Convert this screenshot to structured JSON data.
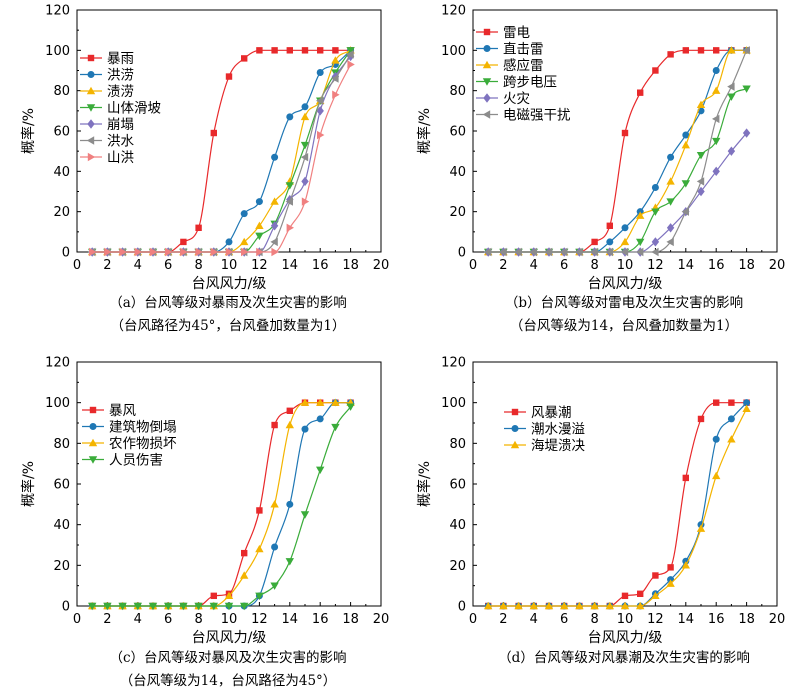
{
  "chart_data": [
    {
      "type": "line",
      "xlabel": "台风风力/级",
      "ylabel": "概率/%",
      "xlim": [
        0,
        20
      ],
      "ylim": [
        0,
        120
      ],
      "xticks": [
        0,
        2,
        4,
        6,
        8,
        10,
        12,
        14,
        16,
        18,
        20
      ],
      "yticks": [
        0,
        20,
        40,
        60,
        80,
        100,
        120
      ],
      "grid": false,
      "legend_position": "top-left",
      "caption_line1": "（a）台风等级对暴雨及次生灾害的影响",
      "caption_line2": "（台风路径为45°，台风叠加数量为1）",
      "x": [
        1,
        2,
        3,
        4,
        5,
        6,
        7,
        8,
        9,
        10,
        11,
        12,
        13,
        14,
        15,
        16,
        17,
        18
      ],
      "series": [
        {
          "name": "暴雨",
          "color": "#e8292b",
          "marker": "square",
          "values": [
            0,
            0,
            0,
            0,
            0,
            0,
            5,
            12,
            59,
            87,
            96,
            100,
            100,
            100,
            100,
            100,
            100,
            100
          ]
        },
        {
          "name": "洪涝",
          "color": "#1f77b4",
          "marker": "circle",
          "values": [
            0,
            0,
            0,
            0,
            0,
            0,
            0,
            0,
            0,
            5,
            19,
            25,
            47,
            67,
            72,
            89,
            93,
            100
          ]
        },
        {
          "name": "渍涝",
          "color": "#f4b400",
          "marker": "triangle-up",
          "values": [
            0,
            0,
            0,
            0,
            0,
            0,
            0,
            0,
            0,
            0,
            5,
            13,
            25,
            35,
            67,
            75,
            95,
            100
          ]
        },
        {
          "name": "山体滑坡",
          "color": "#3aac3a",
          "marker": "triangle-down",
          "values": [
            0,
            0,
            0,
            0,
            0,
            0,
            0,
            0,
            0,
            0,
            0,
            8,
            14,
            33,
            53,
            75,
            89,
            100
          ]
        },
        {
          "name": "崩塌",
          "color": "#7f73bf",
          "marker": "diamond",
          "values": [
            0,
            0,
            0,
            0,
            0,
            0,
            0,
            0,
            0,
            0,
            0,
            0,
            13,
            26,
            35,
            70,
            87,
            97
          ]
        },
        {
          "name": "洪水",
          "color": "#8c8c8c",
          "marker": "triangle-left",
          "values": [
            0,
            0,
            0,
            0,
            0,
            0,
            0,
            0,
            0,
            0,
            0,
            0,
            5,
            25,
            47,
            75,
            86,
            98
          ]
        },
        {
          "name": "山洪",
          "color": "#f08080",
          "marker": "triangle-right",
          "values": [
            0,
            0,
            0,
            0,
            0,
            0,
            0,
            0,
            0,
            0,
            0,
            0,
            0,
            12,
            25,
            58,
            78,
            93
          ]
        }
      ]
    },
    {
      "type": "line",
      "xlabel": "台风风力/级",
      "ylabel": "概率/%",
      "xlim": [
        0,
        20
      ],
      "ylim": [
        0,
        120
      ],
      "xticks": [
        0,
        2,
        4,
        6,
        8,
        10,
        12,
        14,
        16,
        18,
        20
      ],
      "yticks": [
        0,
        20,
        40,
        60,
        80,
        100,
        120
      ],
      "grid": false,
      "legend_position": "top-left",
      "caption_line1": "（b）台风等级对雷电及次生灾害的影响",
      "caption_line2": "（台风等级为14，台风叠加数量为1）",
      "x": [
        1,
        2,
        3,
        4,
        5,
        6,
        7,
        8,
        9,
        10,
        11,
        12,
        13,
        14,
        15,
        16,
        17,
        18
      ],
      "series": [
        {
          "name": "雷电",
          "color": "#e8292b",
          "marker": "square",
          "values": [
            0,
            0,
            0,
            0,
            0,
            0,
            0,
            5,
            13,
            59,
            79,
            90,
            98,
            100,
            100,
            100,
            100,
            100
          ]
        },
        {
          "name": "直击雷",
          "color": "#1f77b4",
          "marker": "circle",
          "values": [
            0,
            0,
            0,
            0,
            0,
            0,
            0,
            0,
            5,
            12,
            20,
            32,
            47,
            58,
            70,
            90,
            100,
            100
          ]
        },
        {
          "name": "感应雷",
          "color": "#f4b400",
          "marker": "triangle-up",
          "values": [
            0,
            0,
            0,
            0,
            0,
            0,
            0,
            0,
            0,
            5,
            18,
            22,
            35,
            53,
            73,
            80,
            100,
            100
          ]
        },
        {
          "name": "跨步电压",
          "color": "#3aac3a",
          "marker": "triangle-down",
          "values": [
            0,
            0,
            0,
            0,
            0,
            0,
            0,
            0,
            0,
            0,
            5,
            20,
            25,
            34,
            48,
            55,
            77,
            81
          ]
        },
        {
          "name": "火灾",
          "color": "#7f73bf",
          "marker": "diamond",
          "values": [
            0,
            0,
            0,
            0,
            0,
            0,
            0,
            0,
            0,
            0,
            0,
            5,
            12,
            20,
            30,
            40,
            50,
            59
          ]
        },
        {
          "name": "电磁强干扰",
          "color": "#8c8c8c",
          "marker": "triangle-left",
          "values": [
            0,
            0,
            0,
            0,
            0,
            0,
            0,
            0,
            0,
            0,
            0,
            0,
            5,
            20,
            35,
            66,
            82,
            100
          ]
        }
      ]
    },
    {
      "type": "line",
      "xlabel": "台风风力/级",
      "ylabel": "概率/%",
      "xlim": [
        0,
        20
      ],
      "ylim": [
        0,
        120
      ],
      "xticks": [
        0,
        2,
        4,
        6,
        8,
        10,
        12,
        14,
        16,
        18,
        20
      ],
      "yticks": [
        0,
        20,
        40,
        60,
        80,
        100,
        120
      ],
      "grid": false,
      "legend_position": "top-left",
      "caption_line1": "（c）台风等级对暴风及次生灾害的影响",
      "caption_line2": "（台风等级为14，台风路径为45°）",
      "x": [
        1,
        2,
        3,
        4,
        5,
        6,
        7,
        8,
        9,
        10,
        11,
        12,
        13,
        14,
        15,
        16,
        17,
        18
      ],
      "series": [
        {
          "name": "暴风",
          "color": "#e8292b",
          "marker": "square",
          "values": [
            0,
            0,
            0,
            0,
            0,
            0,
            0,
            0,
            5,
            6,
            26,
            47,
            89,
            96,
            100,
            100,
            100,
            100
          ]
        },
        {
          "name": "建筑物倒塌",
          "color": "#1f77b4",
          "marker": "circle",
          "values": [
            0,
            0,
            0,
            0,
            0,
            0,
            0,
            0,
            0,
            0,
            0,
            5,
            29,
            50,
            87,
            92,
            100,
            100
          ]
        },
        {
          "name": "农作物损坏",
          "color": "#f4b400",
          "marker": "triangle-up",
          "values": [
            0,
            0,
            0,
            0,
            0,
            0,
            0,
            0,
            0,
            5,
            15,
            28,
            50,
            89,
            100,
            100,
            100,
            100
          ]
        },
        {
          "name": "人员伤害",
          "color": "#3aac3a",
          "marker": "triangle-down",
          "values": [
            0,
            0,
            0,
            0,
            0,
            0,
            0,
            0,
            0,
            0,
            0,
            5,
            10,
            22,
            45,
            67,
            88,
            98
          ]
        }
      ]
    },
    {
      "type": "line",
      "xlabel": "台风风力/级",
      "ylabel": "概率/%",
      "xlim": [
        0,
        20
      ],
      "ylim": [
        0,
        120
      ],
      "xticks": [
        0,
        2,
        4,
        6,
        8,
        10,
        12,
        14,
        16,
        18,
        20
      ],
      "yticks": [
        0,
        20,
        40,
        60,
        80,
        100,
        120
      ],
      "grid": false,
      "legend_position": "top-left",
      "caption_line1": "（d）台风等级对风暴潮及次生灾害的影响",
      "caption_line2": "",
      "x": [
        1,
        2,
        3,
        4,
        5,
        6,
        7,
        8,
        9,
        10,
        11,
        12,
        13,
        14,
        15,
        16,
        17,
        18
      ],
      "series": [
        {
          "name": "风暴潮",
          "color": "#e8292b",
          "marker": "square",
          "values": [
            0,
            0,
            0,
            0,
            0,
            0,
            0,
            0,
            0,
            5,
            6,
            15,
            19,
            63,
            92,
            100,
            100,
            100
          ]
        },
        {
          "name": "潮水漫溢",
          "color": "#1f77b4",
          "marker": "circle",
          "values": [
            0,
            0,
            0,
            0,
            0,
            0,
            0,
            0,
            0,
            0,
            0,
            6,
            13,
            22,
            40,
            82,
            92,
            100
          ]
        },
        {
          "name": "海堤溃决",
          "color": "#f4b400",
          "marker": "triangle-up",
          "values": [
            0,
            0,
            0,
            0,
            0,
            0,
            0,
            0,
            0,
            0,
            0,
            5,
            11,
            20,
            38,
            64,
            82,
            97
          ]
        }
      ]
    }
  ]
}
